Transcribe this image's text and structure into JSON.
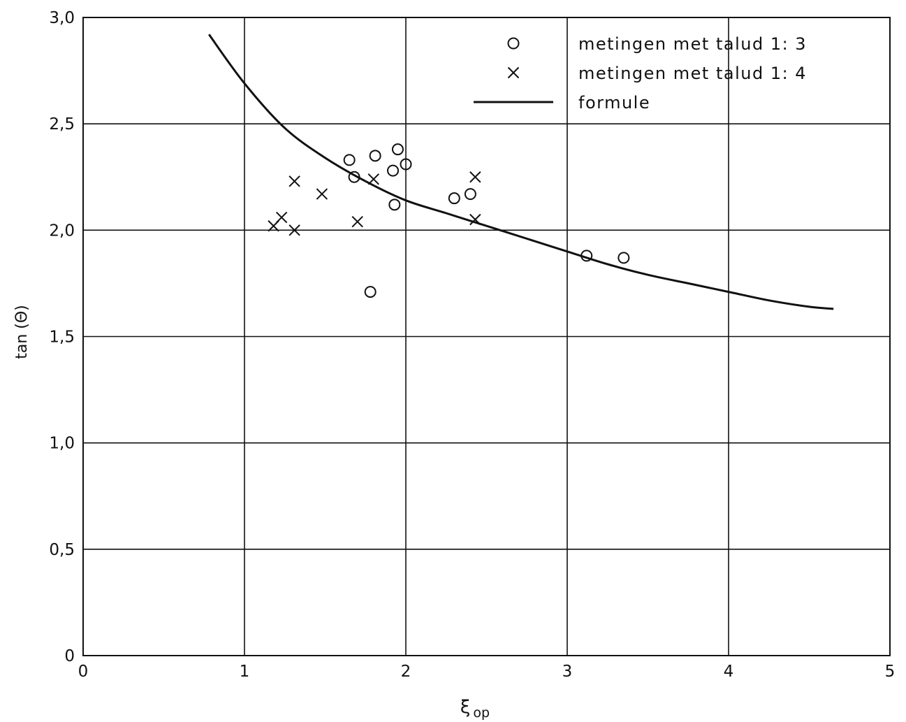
{
  "chart_data": {
    "type": "scatter",
    "title": "",
    "xlabel": "ξ",
    "xlabel_subscript": "op",
    "ylabel": "tan (Θ)",
    "xlim": [
      0,
      5
    ],
    "ylim": [
      0,
      3.0
    ],
    "x_ticks": [
      "0",
      "1",
      "2",
      "3",
      "4",
      "5"
    ],
    "y_ticks": [
      "0",
      "0,5",
      "1,0",
      "1,5",
      "2,0",
      "2,5",
      "3,0"
    ],
    "grid": true,
    "legend_position": "top-right",
    "series": [
      {
        "name": "metingen met talud 1: 3",
        "marker": "circle",
        "points": [
          [
            1.65,
            2.33
          ],
          [
            1.68,
            2.25
          ],
          [
            1.81,
            2.35
          ],
          [
            1.95,
            2.38
          ],
          [
            1.92,
            2.28
          ],
          [
            2.0,
            2.31
          ],
          [
            1.93,
            2.12
          ],
          [
            1.78,
            1.71
          ],
          [
            2.3,
            2.15
          ],
          [
            2.4,
            2.17
          ],
          [
            3.12,
            1.88
          ],
          [
            3.35,
            1.87
          ]
        ]
      },
      {
        "name": "metingen met talud 1: 4",
        "marker": "cross",
        "points": [
          [
            1.18,
            2.02
          ],
          [
            1.23,
            2.06
          ],
          [
            1.31,
            2.23
          ],
          [
            1.31,
            2.0
          ],
          [
            1.48,
            2.17
          ],
          [
            1.7,
            2.04
          ],
          [
            1.8,
            2.24
          ],
          [
            2.43,
            2.25
          ],
          [
            2.43,
            2.05
          ]
        ]
      },
      {
        "name": "formule",
        "marker": "line",
        "points": [
          [
            0.78,
            2.92
          ],
          [
            1.0,
            2.69
          ],
          [
            1.25,
            2.48
          ],
          [
            1.5,
            2.34
          ],
          [
            1.75,
            2.23
          ],
          [
            2.0,
            2.14
          ],
          [
            2.25,
            2.08
          ],
          [
            2.5,
            2.02
          ],
          [
            2.75,
            1.96
          ],
          [
            3.0,
            1.9
          ],
          [
            3.25,
            1.84
          ],
          [
            3.5,
            1.79
          ],
          [
            3.75,
            1.75
          ],
          [
            4.0,
            1.71
          ],
          [
            4.25,
            1.67
          ],
          [
            4.5,
            1.64
          ],
          [
            4.65,
            1.63
          ]
        ]
      }
    ]
  }
}
